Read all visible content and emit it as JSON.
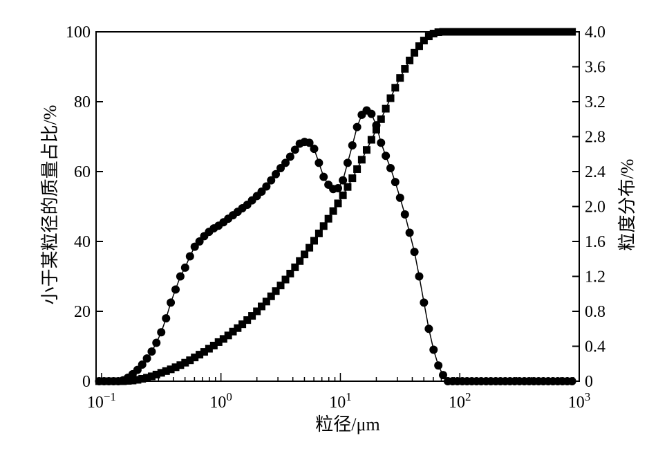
{
  "chart_data": {
    "type": "line",
    "x_scale": "log",
    "x_ticks": [
      {
        "value": 0.1,
        "base": "10",
        "exp": "−1"
      },
      {
        "value": 1,
        "base": "10",
        "exp": "0"
      },
      {
        "value": 10,
        "base": "10",
        "exp": "1"
      },
      {
        "value": 100,
        "base": "10",
        "exp": "2"
      },
      {
        "value": 1000,
        "base": "10",
        "exp": "3"
      }
    ],
    "xlim": [
      0.09,
      1000
    ],
    "xlabel": "粒径/μm",
    "ylabel_left": "小于某粒径的质量占比/%",
    "ylabel_right": "粒度分布/%",
    "ylim_left": [
      0,
      100
    ],
    "ylim_right": [
      0,
      4.0
    ],
    "yticks_left": [
      "0",
      "20",
      "40",
      "60",
      "80",
      "100"
    ],
    "yticks_right": [
      "0",
      "0.4",
      "0.8",
      "1.2",
      "1.6",
      "2.0",
      "2.4",
      "2.8",
      "3.2",
      "3.6",
      "4.0"
    ],
    "grid": false,
    "series": [
      {
        "axis": "left",
        "marker": "square",
        "color": "#000000",
        "x": [
          0.0955,
          0.105,
          0.115,
          0.126,
          0.138,
          0.151,
          0.166,
          0.182,
          0.2,
          0.219,
          0.24,
          0.263,
          0.288,
          0.316,
          0.347,
          0.38,
          0.417,
          0.457,
          0.501,
          0.55,
          0.603,
          0.661,
          0.724,
          0.794,
          0.871,
          0.955,
          1.05,
          1.15,
          1.26,
          1.38,
          1.51,
          1.66,
          1.82,
          2.0,
          2.19,
          2.4,
          2.63,
          2.88,
          3.16,
          3.47,
          3.8,
          4.17,
          4.57,
          5.01,
          5.5,
          6.03,
          6.61,
          7.24,
          7.94,
          8.71,
          9.55,
          10.5,
          11.5,
          12.6,
          13.8,
          15.1,
          16.6,
          18.2,
          20.0,
          21.9,
          24.0,
          26.3,
          28.8,
          31.6,
          34.7,
          38.0,
          41.7,
          45.7,
          50.1,
          55.0,
          60.3,
          66.1,
          72.4,
          79.4,
          87.1,
          95.5,
          105,
          115,
          126,
          138,
          151,
          166,
          182,
          200,
          219,
          240,
          263,
          288,
          316,
          347,
          380,
          417,
          457,
          501,
          550,
          603,
          661,
          724,
          794,
          871
        ],
        "y": [
          0,
          0,
          0,
          0,
          0,
          0,
          0.1,
          0.2,
          0.4,
          0.7,
          1.0,
          1.4,
          1.9,
          2.4,
          2.9,
          3.4,
          4.0,
          4.6,
          5.3,
          6.0,
          6.8,
          7.6,
          8.4,
          9.3,
          10.2,
          11.2,
          12.1,
          13.1,
          14.2,
          15.2,
          16.3,
          17.5,
          18.7,
          20.0,
          21.4,
          22.8,
          24.3,
          25.8,
          27.4,
          29.1,
          30.8,
          32.6,
          34.4,
          36.3,
          38.2,
          40.2,
          42.3,
          44.4,
          46.5,
          48.7,
          50.9,
          53.2,
          55.6,
          58.1,
          60.7,
          63.4,
          66.2,
          69.1,
          72.0,
          75.0,
          78.0,
          81.0,
          84.0,
          86.8,
          89.4,
          91.8,
          94.0,
          95.9,
          97.5,
          98.7,
          99.5,
          99.9,
          100,
          100,
          100,
          100,
          100,
          100,
          100,
          100,
          100,
          100,
          100,
          100,
          100,
          100,
          100,
          100,
          100,
          100,
          100,
          100,
          100,
          100,
          100,
          100,
          100,
          100,
          100,
          100
        ]
      },
      {
        "axis": "right",
        "marker": "circle",
        "color": "#000000",
        "x": [
          0.0955,
          0.105,
          0.115,
          0.126,
          0.138,
          0.151,
          0.166,
          0.182,
          0.2,
          0.219,
          0.24,
          0.263,
          0.288,
          0.316,
          0.347,
          0.38,
          0.417,
          0.457,
          0.501,
          0.55,
          0.603,
          0.661,
          0.724,
          0.794,
          0.871,
          0.955,
          1.05,
          1.15,
          1.26,
          1.38,
          1.51,
          1.66,
          1.82,
          2.0,
          2.19,
          2.4,
          2.63,
          2.88,
          3.16,
          3.47,
          3.8,
          4.17,
          4.57,
          5.01,
          5.5,
          6.03,
          6.61,
          7.24,
          7.94,
          8.71,
          9.55,
          10.5,
          11.5,
          12.6,
          13.8,
          15.1,
          16.6,
          18.2,
          20.0,
          21.9,
          24.0,
          26.3,
          28.8,
          31.6,
          34.7,
          38.0,
          41.7,
          45.7,
          50.1,
          55.0,
          60.3,
          66.1,
          72.4,
          79.4,
          87.1,
          95.5,
          105,
          115,
          126,
          138,
          151,
          166,
          182,
          200,
          219,
          240,
          263,
          288,
          316,
          347,
          380,
          417,
          457,
          501,
          550,
          603,
          661,
          724,
          794,
          871
        ],
        "y": [
          0,
          0,
          0,
          0,
          0,
          0.01,
          0.04,
          0.08,
          0.13,
          0.19,
          0.26,
          0.34,
          0.44,
          0.56,
          0.72,
          0.9,
          1.05,
          1.2,
          1.3,
          1.43,
          1.54,
          1.6,
          1.66,
          1.71,
          1.75,
          1.78,
          1.82,
          1.86,
          1.9,
          1.94,
          1.98,
          2.02,
          2.07,
          2.12,
          2.17,
          2.23,
          2.3,
          2.37,
          2.44,
          2.5,
          2.57,
          2.65,
          2.72,
          2.74,
          2.73,
          2.66,
          2.5,
          2.34,
          2.25,
          2.2,
          2.21,
          2.3,
          2.5,
          2.7,
          2.91,
          3.05,
          3.1,
          3.06,
          2.93,
          2.73,
          2.58,
          2.44,
          2.28,
          2.1,
          1.91,
          1.7,
          1.48,
          1.2,
          0.9,
          0.6,
          0.36,
          0.18,
          0.07,
          0.0,
          0,
          0,
          0,
          0,
          0,
          0,
          0,
          0,
          0,
          0,
          0,
          0,
          0,
          0,
          0,
          0,
          0,
          0,
          0,
          0,
          0,
          0,
          0,
          0,
          0,
          0
        ]
      }
    ]
  }
}
